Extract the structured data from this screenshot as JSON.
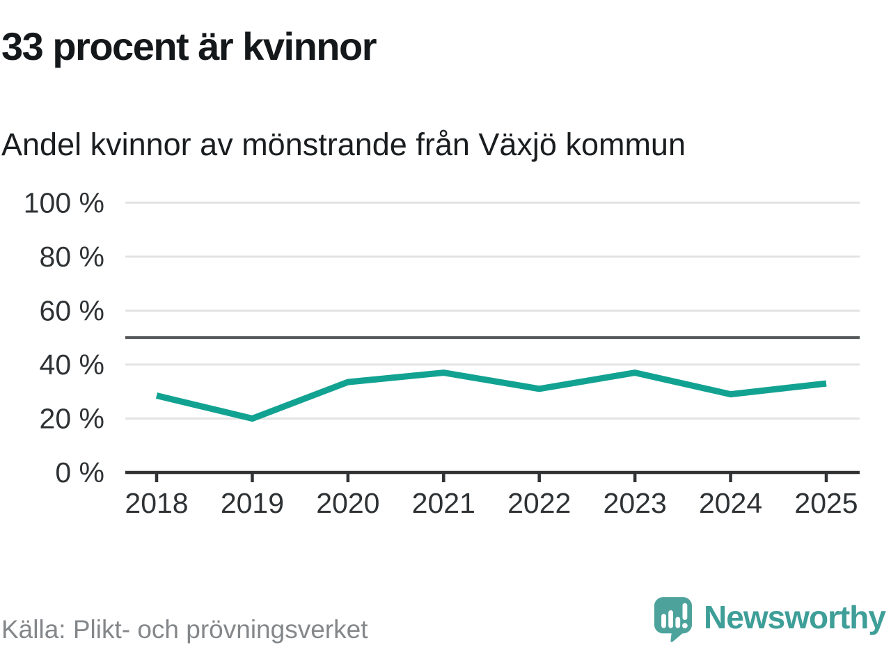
{
  "chart_data": {
    "type": "line",
    "title": "33 procent är kvinnor",
    "subtitle": "Andel kvinnor av mönstrande från Växjö kommun",
    "categories": [
      "2018",
      "2019",
      "2020",
      "2021",
      "2022",
      "2023",
      "2024",
      "2025"
    ],
    "series": [
      {
        "name": "Andel kvinnor av mönstrande",
        "values": [
          28.5,
          20,
          33.5,
          37,
          31,
          37,
          29,
          33
        ]
      }
    ],
    "unit": "%",
    "xlabel": "",
    "ylabel": "",
    "ylim": [
      0,
      100
    ],
    "y_ticks": [
      0,
      20,
      40,
      60,
      80,
      100
    ],
    "y_tick_labels": [
      "0 %",
      "20 %",
      "40 %",
      "60 %",
      "80 %",
      "100 %"
    ],
    "reference_line": 50,
    "grid": true,
    "legend_position": "none"
  },
  "footer": {
    "source": "Källa: Plikt- och prövningsverket",
    "logo_text": "Newsworthy"
  },
  "colors": {
    "series_line": "#12a291",
    "gridline": "#e3e3e3",
    "reference_line": "#55585a",
    "axis": "#303234",
    "tick_label": "#2e3234",
    "title_text": "#15181a",
    "source_text": "#84878a",
    "logo_bubble": "#4da39c",
    "logo_text": "#3e9e98"
  }
}
